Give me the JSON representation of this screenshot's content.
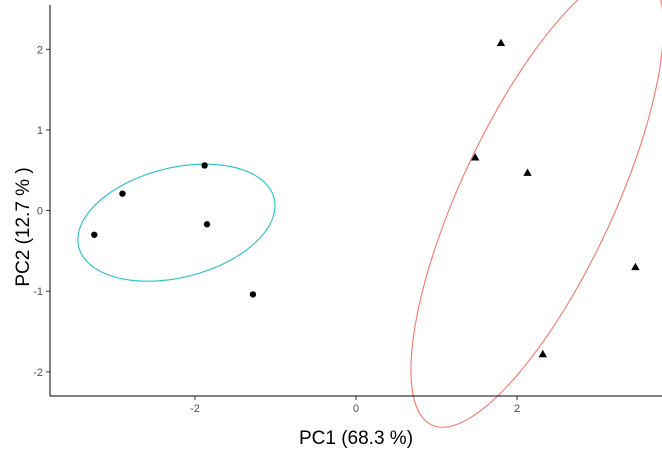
{
  "chart_data": {
    "type": "scatter",
    "title": "",
    "xlabel": "PC1 (68.3 %)",
    "ylabel": "PC2 (12.7 % )",
    "xlim": [
      -3.8,
      3.8
    ],
    "ylim": [
      -2.3,
      2.55
    ],
    "x_ticks": [
      -2,
      0,
      2
    ],
    "y_ticks": [
      -2,
      -1,
      0,
      1,
      2
    ],
    "x_tick_labels": [
      "-2",
      "0",
      "2"
    ],
    "y_tick_labels": [
      "-2",
      "-1",
      "0",
      "1",
      "2"
    ],
    "grid": false,
    "legend": "none",
    "series": [
      {
        "marker": "circle",
        "color": "#000000",
        "ellipse_color": "#26BFC7",
        "points": [
          {
            "x": -3.25,
            "y": -0.3
          },
          {
            "x": -2.9,
            "y": 0.21
          },
          {
            "x": -1.88,
            "y": 0.56
          },
          {
            "x": -1.85,
            "y": -0.17
          },
          {
            "x": -1.28,
            "y": -1.04
          }
        ],
        "ellipse": {
          "cx": -2.23,
          "cy": -0.15,
          "rx": 1.25,
          "ry": 0.68,
          "angle_deg": 14
        }
      },
      {
        "marker": "triangle",
        "color": "#000000",
        "ellipse_color": "#F8766D",
        "points": [
          {
            "x": 1.8,
            "y": 2.08
          },
          {
            "x": 1.48,
            "y": 0.66
          },
          {
            "x": 2.13,
            "y": 0.47
          },
          {
            "x": 3.47,
            "y": -0.7
          },
          {
            "x": 2.32,
            "y": -1.78
          }
        ],
        "ellipse": {
          "cx": 2.25,
          "cy": 0.15,
          "rx": 0.95,
          "ry": 3.1,
          "angle_deg": -25
        }
      }
    ]
  }
}
